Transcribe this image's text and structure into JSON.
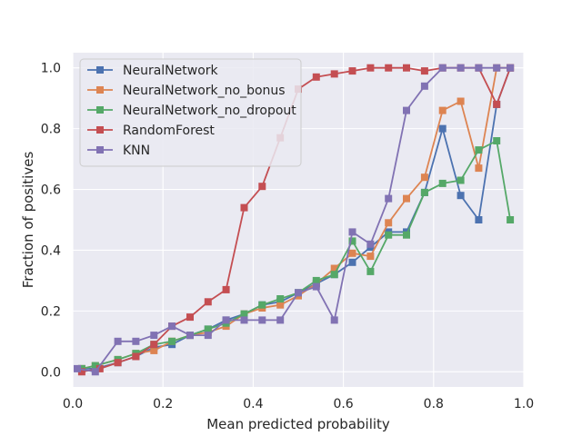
{
  "chart_data": {
    "type": "line",
    "xlabel": "Mean predicted probability",
    "ylabel": "Fraction of positives",
    "xlim": [
      0.0,
      1.0
    ],
    "ylim": [
      -0.05,
      1.05
    ],
    "xticks": [
      "0.0",
      "0.2",
      "0.4",
      "0.6",
      "0.8",
      "1.0"
    ],
    "yticks": [
      "0.0",
      "0.2",
      "0.4",
      "0.6",
      "0.8",
      "1.0"
    ],
    "xtick_values": [
      0.0,
      0.2,
      0.4,
      0.6,
      0.8,
      1.0
    ],
    "ytick_values": [
      0.0,
      0.2,
      0.4,
      0.6,
      0.8,
      1.0
    ],
    "grid": true,
    "legend_position": "top-left",
    "marker": "square",
    "background": "#eaeaf2",
    "series": [
      {
        "name": "NeuralNetwork",
        "color": "#4c72b0",
        "x": [
          0.02,
          0.05,
          0.1,
          0.14,
          0.18,
          0.22,
          0.26,
          0.3,
          0.34,
          0.38,
          0.42,
          0.46,
          0.5,
          0.54,
          0.58,
          0.62,
          0.66,
          0.7,
          0.74,
          0.78,
          0.82,
          0.86,
          0.9,
          0.94,
          0.97
        ],
        "y": [
          0.01,
          0.01,
          0.03,
          0.05,
          0.08,
          0.09,
          0.12,
          0.14,
          0.17,
          0.19,
          0.22,
          0.23,
          0.26,
          0.29,
          0.32,
          0.36,
          0.41,
          0.46,
          0.46,
          0.59,
          0.8,
          0.58,
          0.5,
          0.88,
          1.0
        ]
      },
      {
        "name": "NeuralNetwork_no_bonus",
        "color": "#dd8452",
        "x": [
          0.02,
          0.05,
          0.1,
          0.14,
          0.18,
          0.22,
          0.26,
          0.3,
          0.34,
          0.38,
          0.42,
          0.46,
          0.5,
          0.54,
          0.58,
          0.62,
          0.66,
          0.7,
          0.74,
          0.78,
          0.82,
          0.86,
          0.9,
          0.94,
          0.97
        ],
        "y": [
          0.01,
          0.02,
          0.04,
          0.06,
          0.07,
          0.1,
          0.12,
          0.13,
          0.15,
          0.19,
          0.21,
          0.22,
          0.25,
          0.29,
          0.34,
          0.39,
          0.38,
          0.49,
          0.57,
          0.64,
          0.86,
          0.89,
          0.67,
          1.0,
          1.0
        ]
      },
      {
        "name": "NeuralNetwork_no_dropout",
        "color": "#55a868",
        "x": [
          0.02,
          0.05,
          0.1,
          0.14,
          0.18,
          0.22,
          0.26,
          0.3,
          0.34,
          0.38,
          0.42,
          0.46,
          0.5,
          0.54,
          0.58,
          0.62,
          0.66,
          0.7,
          0.74,
          0.78,
          0.82,
          0.86,
          0.9,
          0.94,
          0.97
        ],
        "y": [
          0.01,
          0.02,
          0.04,
          0.06,
          0.09,
          0.1,
          0.12,
          0.14,
          0.16,
          0.19,
          0.22,
          0.24,
          0.26,
          0.3,
          0.32,
          0.43,
          0.33,
          0.45,
          0.45,
          0.59,
          0.62,
          0.63,
          0.73,
          0.76,
          0.5
        ]
      },
      {
        "name": "RandomForest",
        "color": "#c44e52",
        "x": [
          0.02,
          0.06,
          0.1,
          0.14,
          0.18,
          0.22,
          0.26,
          0.3,
          0.34,
          0.38,
          0.42,
          0.46,
          0.5,
          0.54,
          0.58,
          0.62,
          0.66,
          0.7,
          0.74,
          0.78,
          0.82,
          0.86,
          0.9,
          0.94,
          0.97
        ],
        "y": [
          0.0,
          0.01,
          0.03,
          0.05,
          0.09,
          0.15,
          0.18,
          0.23,
          0.27,
          0.54,
          0.61,
          0.77,
          0.93,
          0.97,
          0.98,
          0.99,
          1.0,
          1.0,
          1.0,
          0.99,
          1.0,
          1.0,
          1.0,
          0.88,
          1.0
        ]
      },
      {
        "name": "KNN",
        "color": "#8172b3",
        "x": [
          0.01,
          0.05,
          0.1,
          0.14,
          0.18,
          0.22,
          0.26,
          0.3,
          0.34,
          0.38,
          0.42,
          0.46,
          0.5,
          0.54,
          0.58,
          0.62,
          0.66,
          0.7,
          0.74,
          0.78,
          0.82,
          0.86,
          0.9,
          0.94,
          0.97
        ],
        "y": [
          0.01,
          0.0,
          0.1,
          0.1,
          0.12,
          0.15,
          0.12,
          0.12,
          0.17,
          0.17,
          0.17,
          0.17,
          0.26,
          0.28,
          0.17,
          0.46,
          0.42,
          0.57,
          0.86,
          0.94,
          1.0,
          1.0,
          1.0,
          1.0,
          1.0
        ]
      }
    ]
  }
}
